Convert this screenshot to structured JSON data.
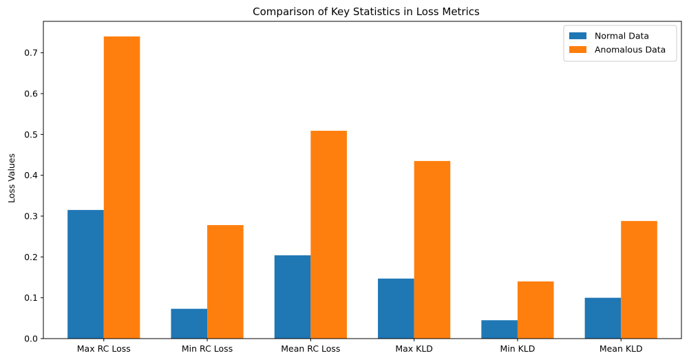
{
  "chart_data": {
    "type": "bar",
    "title": "Comparison of Key Statistics in Loss Metrics",
    "xlabel": "",
    "ylabel": "Loss Values",
    "categories": [
      "Max RC Loss",
      "Min RC Loss",
      "Mean RC Loss",
      "Max KLD",
      "Min KLD",
      "Mean KLD"
    ],
    "series": [
      {
        "name": "Normal Data",
        "color": "#1f77b4",
        "values": [
          0.315,
          0.073,
          0.204,
          0.147,
          0.045,
          0.1
        ]
      },
      {
        "name": "Anomalous Data",
        "color": "#ff7f0e",
        "values": [
          0.74,
          0.278,
          0.509,
          0.435,
          0.14,
          0.288
        ]
      }
    ],
    "ylim": [
      0,
      0.777
    ],
    "yticks": [
      0.0,
      0.1,
      0.2,
      0.3,
      0.4,
      0.5,
      0.6,
      0.7
    ],
    "ytick_labels": [
      "0.0",
      "0.1",
      "0.2",
      "0.3",
      "0.4",
      "0.5",
      "0.6",
      "0.7"
    ],
    "grid": false,
    "legend_position": "top-right"
  }
}
